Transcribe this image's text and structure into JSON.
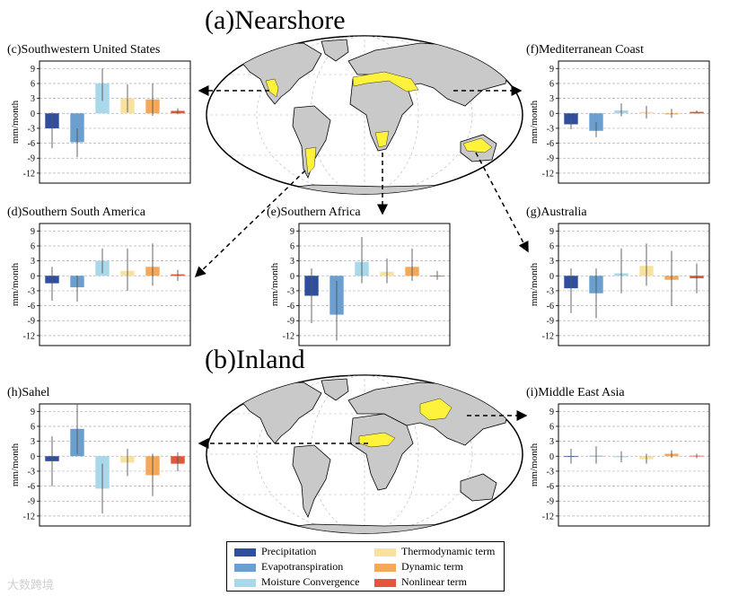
{
  "headings": {
    "nearshore": "(a)Nearshore",
    "inland": "(b)Inland"
  },
  "colors": {
    "Precipitation": "#2f4f9e",
    "Evapotranspiration": "#6a9fd0",
    "Moisture Convergence": "#a9d8ea",
    "Thermodynamic term": "#f9e29e",
    "Dynamic term": "#f4a95a",
    "Nonlinear term": "#e2573a",
    "land": "#c9c9c9",
    "highlight": "#fff23a"
  },
  "legend": [
    "Precipitation",
    "Evapotranspiration",
    "Moisture Convergence",
    "Thermodynamic term",
    "Dynamic term",
    "Nonlinear term"
  ],
  "chart_data": [
    {
      "id": "c",
      "type": "bar",
      "title": "(c)Southwestern United States",
      "ylabel": "mm/month",
      "ylim": [
        -14,
        10.5
      ],
      "yticks": [
        9,
        6,
        3,
        0,
        -3,
        -6,
        -9,
        -12
      ],
      "categories": [
        "Precipitation",
        "Evapotranspiration",
        "Moisture Convergence",
        "Thermodynamic term",
        "Dynamic term",
        "Nonlinear term"
      ],
      "values": [
        -3.0,
        -5.8,
        6.0,
        3.0,
        2.8,
        0.5
      ],
      "err_low": [
        -7.0,
        -8.8,
        2.5,
        0.2,
        -0.5,
        -0.2
      ],
      "err_high": [
        0.2,
        -3.0,
        9.0,
        5.8,
        6.0,
        1.0
      ]
    },
    {
      "id": "f",
      "type": "bar",
      "title": "(f)Mediterranean Coast",
      "ylabel": "mm/month",
      "ylim": [
        -14,
        10.5
      ],
      "yticks": [
        9,
        6,
        3,
        0,
        -3,
        -6,
        -9,
        -12
      ],
      "categories": [
        "Precipitation",
        "Evapotranspiration",
        "Moisture Convergence",
        "Thermodynamic term",
        "Dynamic term",
        "Nonlinear term"
      ],
      "values": [
        -2.2,
        -3.5,
        0.6,
        0.3,
        -0.2,
        0.3
      ],
      "err_low": [
        -3.2,
        -4.8,
        -0.6,
        -1.0,
        -0.9,
        0.0
      ],
      "err_high": [
        -0.8,
        -1.8,
        2.0,
        1.5,
        0.9,
        0.6
      ]
    },
    {
      "id": "d",
      "type": "bar",
      "title": "(d)Southern South America",
      "ylabel": "mm/month",
      "ylim": [
        -14,
        10.5
      ],
      "yticks": [
        9,
        6,
        3,
        0,
        -3,
        -6,
        -9,
        -12
      ],
      "categories": [
        "Precipitation",
        "Evapotranspiration",
        "Moisture Convergence",
        "Thermodynamic term",
        "Dynamic term",
        "Nonlinear term"
      ],
      "values": [
        -1.5,
        -2.3,
        3.0,
        1.0,
        1.8,
        0.3
      ],
      "err_low": [
        -5.0,
        -5.2,
        0.5,
        -3.0,
        -2.0,
        -1.0
      ],
      "err_high": [
        1.8,
        0.0,
        5.5,
        5.5,
        6.5,
        1.2
      ]
    },
    {
      "id": "e",
      "type": "bar",
      "title": "(e)Southern Africa",
      "ylabel": "mm/month",
      "ylim": [
        -14,
        10.5
      ],
      "yticks": [
        9,
        6,
        3,
        0,
        -3,
        -6,
        -9,
        -12
      ],
      "categories": [
        "Precipitation",
        "Evapotranspiration",
        "Moisture Convergence",
        "Thermodynamic term",
        "Dynamic term",
        "Nonlinear term"
      ],
      "values": [
        -4.0,
        -7.8,
        2.8,
        0.8,
        1.8,
        0.0
      ],
      "err_low": [
        -9.5,
        -13.0,
        -1.5,
        -1.5,
        -1.0,
        -0.8
      ],
      "err_high": [
        1.5,
        -1.0,
        7.8,
        3.5,
        5.5,
        1.0
      ]
    },
    {
      "id": "g",
      "type": "bar",
      "title": "(g)Australia",
      "ylabel": "mm/month",
      "ylim": [
        -14,
        10.5
      ],
      "yticks": [
        9,
        6,
        3,
        0,
        -3,
        -6,
        -9,
        -12
      ],
      "categories": [
        "Precipitation",
        "Evapotranspiration",
        "Moisture Convergence",
        "Thermodynamic term",
        "Dynamic term",
        "Nonlinear term"
      ],
      "values": [
        -2.5,
        -3.5,
        0.5,
        2.0,
        -0.8,
        -0.5
      ],
      "err_low": [
        -7.5,
        -8.5,
        -3.5,
        -2.0,
        -6.0,
        -3.5
      ],
      "err_high": [
        1.5,
        1.5,
        5.5,
        6.5,
        5.0,
        2.5
      ]
    },
    {
      "id": "h",
      "type": "bar",
      "title": "(h)Sahel",
      "ylabel": "mm/month",
      "ylim": [
        -14,
        10.5
      ],
      "yticks": [
        9,
        6,
        3,
        0,
        -3,
        -6,
        -9,
        -12
      ],
      "categories": [
        "Precipitation",
        "Evapotranspiration",
        "Moisture Convergence",
        "Thermodynamic term",
        "Dynamic term",
        "Nonlinear term"
      ],
      "values": [
        -1.0,
        5.5,
        -6.5,
        -1.3,
        -3.8,
        -1.5
      ],
      "err_low": [
        -6.0,
        0.5,
        -11.5,
        -4.0,
        -8.0,
        -3.0
      ],
      "err_high": [
        4.0,
        10.5,
        -1.5,
        1.5,
        0.5,
        0.8
      ]
    },
    {
      "id": "i",
      "type": "bar",
      "title": "(i)Middle East Asia",
      "ylabel": "mm/month",
      "ylim": [
        -14,
        10.5
      ],
      "yticks": [
        9,
        6,
        3,
        0,
        -3,
        -6,
        -9,
        -12
      ],
      "categories": [
        "Precipitation",
        "Evapotranspiration",
        "Moisture Convergence",
        "Thermodynamic term",
        "Dynamic term",
        "Nonlinear term"
      ],
      "values": [
        0.0,
        0.1,
        -0.2,
        -0.6,
        0.5,
        0.1
      ],
      "err_low": [
        -1.5,
        -1.5,
        -1.2,
        -1.5,
        -0.3,
        -0.4
      ],
      "err_high": [
        1.5,
        2.0,
        1.0,
        0.5,
        1.2,
        0.5
      ]
    }
  ],
  "watermark": "大数跨境"
}
